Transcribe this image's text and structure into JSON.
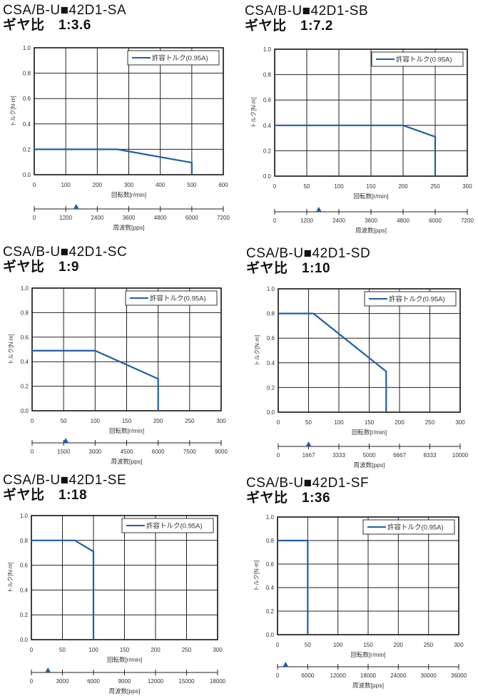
{
  "colors": {
    "series": "#1f5fa8",
    "grid": "#222222",
    "text": "#333333"
  },
  "chart_data": [
    {
      "type": "line",
      "model": "CSA/B-U■42D1-SA",
      "gear_ratio": "ギヤ比　1:3.6",
      "xlabel": "回転数[r/min]",
      "ylabel": "トルク[N·m]",
      "x2label": "周波数[pps]",
      "xlim": [
        0,
        600
      ],
      "ylim": [
        0,
        1.0
      ],
      "grid": true,
      "legend": "top-right",
      "xticks": [
        "0",
        "100",
        "200",
        "300",
        "400",
        "500",
        "600"
      ],
      "yticks": [
        "0.0",
        "0.2",
        "0.4",
        "0.6",
        "0.8",
        "1.0"
      ],
      "x2ticks": [
        "0",
        "1200",
        "2400",
        "3600",
        "4800",
        "6000",
        "7200"
      ],
      "x2lim": [
        0,
        7200
      ],
      "x2_marker": 1600,
      "series": [
        {
          "name": "許容トルク(0.95A)",
          "x": [
            0,
            263,
            500,
            500
          ],
          "y": [
            0.2,
            0.2,
            0.095,
            0
          ]
        }
      ]
    },
    {
      "type": "line",
      "model": "CSA/B-U■42D1-SB",
      "gear_ratio": "ギヤ比　1:7.2",
      "xlabel": "回転数[r/min]",
      "ylabel": "トルク[N·m]",
      "x2label": "周波数[pps]",
      "xlim": [
        0,
        300
      ],
      "ylim": [
        0,
        1.0
      ],
      "grid": true,
      "legend": "top-right",
      "xticks": [
        "0",
        "50",
        "100",
        "150",
        "200",
        "250",
        "300"
      ],
      "yticks": [
        "0.0",
        "0.2",
        "0.4",
        "0.6",
        "0.8",
        "1.0"
      ],
      "x2ticks": [
        "0",
        "1200",
        "2400",
        "3600",
        "4800",
        "6000",
        "7200"
      ],
      "x2lim": [
        0,
        7200
      ],
      "x2_marker": 1650,
      "series": [
        {
          "name": "許容トルク(0.95A)",
          "x": [
            0,
            200,
            250,
            250
          ],
          "y": [
            0.4,
            0.4,
            0.31,
            0
          ]
        }
      ]
    },
    {
      "type": "line",
      "model": "CSA/B-U■42D1-SC",
      "gear_ratio": "ギヤ比　1:9",
      "xlabel": "回転数[r/min]",
      "ylabel": "トルク[N·m]",
      "x2label": "周波数[pps]",
      "xlim": [
        0,
        300
      ],
      "ylim": [
        0,
        1.0
      ],
      "grid": true,
      "legend": "top-right",
      "xticks": [
        "0",
        "50",
        "100",
        "150",
        "200",
        "250",
        "300"
      ],
      "yticks": [
        "0.0",
        "0.2",
        "0.4",
        "0.6",
        "0.8",
        "1.0"
      ],
      "x2ticks": [
        "0",
        "1500",
        "3000",
        "4500",
        "6000",
        "7500",
        "9000"
      ],
      "x2lim": [
        0,
        9000
      ],
      "x2_marker": 1600,
      "series": [
        {
          "name": "許容トルク(0.95A)",
          "x": [
            0,
            100,
            200,
            200
          ],
          "y": [
            0.49,
            0.49,
            0.26,
            0
          ]
        }
      ]
    },
    {
      "type": "line",
      "model": "CSA/B-U■42D1-SD",
      "gear_ratio": "ギヤ比　1:10",
      "xlabel": "回転数[r/min]",
      "ylabel": "トルク[N·m]",
      "x2label": "周波数[pps]",
      "xlim": [
        0,
        300
      ],
      "ylim": [
        0,
        1.0
      ],
      "grid": true,
      "legend": "top-right",
      "xticks": [
        "0",
        "50",
        "100",
        "150",
        "200",
        "250",
        "300"
      ],
      "yticks": [
        "0.0",
        "0.2",
        "0.4",
        "0.6",
        "0.8",
        "1.0"
      ],
      "x2ticks": [
        "0",
        "1667",
        "3333",
        "5000",
        "6667",
        "8333",
        "10000"
      ],
      "x2lim": [
        0,
        10000
      ],
      "x2_marker": 1667,
      "series": [
        {
          "name": "許容トルク(0.95A)",
          "x": [
            0,
            58,
            178,
            178
          ],
          "y": [
            0.8,
            0.8,
            0.33,
            0
          ]
        }
      ]
    },
    {
      "type": "line",
      "model": "CSA/B-U■42D1-SE",
      "gear_ratio": "ギヤ比　1:18",
      "xlabel": "回転数[r/min]",
      "ylabel": "トルク[N·m]",
      "x2label": "周波数[pps]",
      "xlim": [
        0,
        300
      ],
      "ylim": [
        0,
        1.0
      ],
      "grid": true,
      "legend": "top-right",
      "xticks": [
        "0",
        "50",
        "100",
        "150",
        "200",
        "250",
        "300"
      ],
      "yticks": [
        "0.0",
        "0.2",
        "0.4",
        "0.6",
        "0.8",
        "1.0"
      ],
      "x2ticks": [
        "0",
        "3000",
        "6000",
        "9000",
        "12000",
        "15000",
        "18000"
      ],
      "x2lim": [
        0,
        18000
      ],
      "x2_marker": 1600,
      "series": [
        {
          "name": "許容トルク(0.95A)",
          "x": [
            0,
            70,
            100,
            100
          ],
          "y": [
            0.8,
            0.8,
            0.71,
            0
          ]
        }
      ]
    },
    {
      "type": "line",
      "model": "CSA/B-U■42D1-SF",
      "gear_ratio": "ギヤ比　1:36",
      "xlabel": "回転数[r/min]",
      "ylabel": "トルク[N·m]",
      "x2label": "周波数[pps]",
      "xlim": [
        0,
        300
      ],
      "ylim": [
        0,
        1.0
      ],
      "grid": true,
      "legend": "top-right",
      "xticks": [
        "0",
        "50",
        "100",
        "150",
        "200",
        "250",
        "300"
      ],
      "yticks": [
        "0.0",
        "0.2",
        "0.4",
        "0.6",
        "0.8",
        "1.0"
      ],
      "x2ticks": [
        "0",
        "6000",
        "12000",
        "18000",
        "24000",
        "30000",
        "36000"
      ],
      "x2lim": [
        0,
        36000
      ],
      "x2_marker": 1600,
      "series": [
        {
          "name": "許容トルク(0.95A)",
          "x": [
            0,
            50,
            50
          ],
          "y": [
            0.8,
            0.8,
            0
          ]
        }
      ]
    }
  ]
}
